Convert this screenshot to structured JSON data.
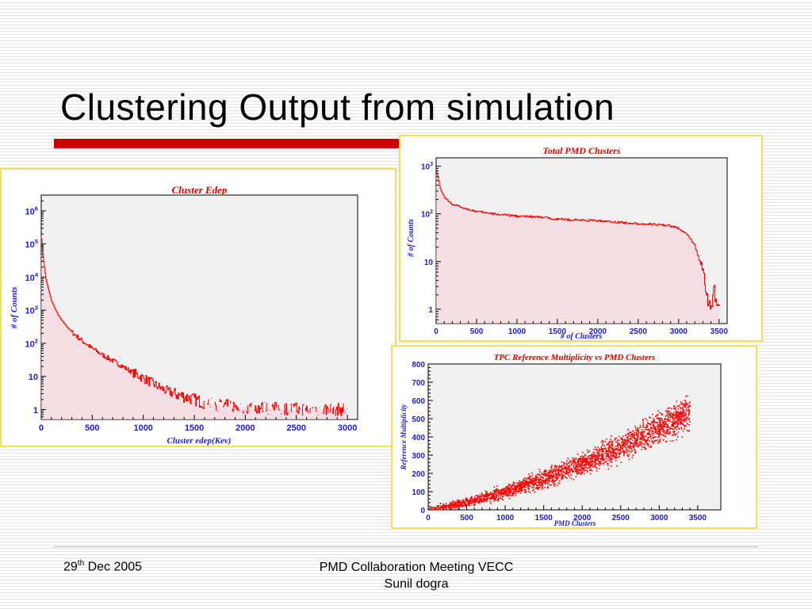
{
  "slide": {
    "title": "Clustering Output from simulation",
    "footer": {
      "date_day": "29",
      "date_sup": "th",
      "date_rest": " Dec 2005",
      "line1": "PMD Collaboration Meeting VECC",
      "line2": "Sunil dogra"
    },
    "colors": {
      "accent_bar": "#cc0000",
      "panel_border": "#f0e060",
      "plot_line": "#ff0000",
      "axis_text": "#1d1dcc",
      "title_text": "#dd0000"
    }
  },
  "chart_data": [
    {
      "id": "cluster-edep",
      "type": "line",
      "title": "Cluster Edep",
      "xlabel": "Cluster edep(Kev)",
      "ylabel": "# of Counts",
      "xlim": [
        0,
        3100
      ],
      "ylim": [
        0.5,
        3000000
      ],
      "yscale": "log",
      "xticks": [
        0,
        500,
        1000,
        1500,
        2000,
        2500,
        3000
      ],
      "yticks": [
        {
          "v": 1,
          "base": "1",
          "exp": ""
        },
        {
          "v": 10,
          "base": "10",
          "exp": ""
        },
        {
          "v": 100,
          "base": "10",
          "exp": "2"
        },
        {
          "v": 1000,
          "base": "10",
          "exp": "3"
        },
        {
          "v": 10000,
          "base": "10",
          "exp": "4"
        },
        {
          "v": 100000,
          "base": "10",
          "exp": "5"
        },
        {
          "v": 1000000,
          "base": "10",
          "exp": "6"
        }
      ],
      "series": [
        {
          "x": [
            0,
            20,
            50,
            100,
            150,
            200,
            300,
            400,
            500,
            600,
            700,
            800,
            900,
            1000,
            1100,
            1200,
            1300,
            1400,
            1500,
            1600,
            1800,
            2000,
            2200,
            2400,
            2600,
            2800,
            3000
          ],
          "y": [
            200000,
            40000,
            8000,
            2000,
            900,
            500,
            220,
            120,
            70,
            45,
            30,
            20,
            13,
            9,
            6,
            4,
            3,
            2.5,
            2,
            1.6,
            1.3,
            1.2,
            1.1,
            1.05,
            1.02,
            1.0,
            1.0
          ]
        }
      ]
    },
    {
      "id": "total-pmd-clusters",
      "type": "line",
      "title": "Total PMD Clusters",
      "xlabel": "# of Clusters",
      "ylabel": "# of Counts",
      "xlim": [
        0,
        3600
      ],
      "ylim": [
        0.5,
        1500
      ],
      "yscale": "log",
      "xticks": [
        0,
        500,
        1000,
        1500,
        2000,
        2500,
        3000,
        3500
      ],
      "yticks": [
        {
          "v": 1,
          "base": "1",
          "exp": ""
        },
        {
          "v": 10,
          "base": "10",
          "exp": ""
        },
        {
          "v": 100,
          "base": "10",
          "exp": "2"
        },
        {
          "v": 1000,
          "base": "10",
          "exp": "3"
        }
      ],
      "series": [
        {
          "x": [
            0,
            25,
            50,
            100,
            150,
            200,
            300,
            400,
            500,
            700,
            1000,
            1300,
            1500,
            1700,
            2000,
            2200,
            2500,
            2700,
            2900,
            3000,
            3100,
            3200,
            3250,
            3300,
            3330,
            3360,
            3400,
            3440,
            3470,
            3500
          ],
          "y": [
            900,
            600,
            350,
            230,
            185,
            160,
            140,
            125,
            112,
            100,
            90,
            85,
            78,
            75,
            72,
            68,
            62,
            60,
            56,
            50,
            38,
            22,
            12,
            6,
            3,
            1.5,
            1,
            3,
            1.2,
            1
          ]
        }
      ]
    },
    {
      "id": "tpc-ref-mult",
      "type": "scatter",
      "title": "TPC Reference Multiplicity vs PMD Clusters",
      "xlabel": "PMD Clusters",
      "ylabel": "Reference Multiplicity",
      "xlim": [
        0,
        3800
      ],
      "ylim": [
        0,
        800
      ],
      "xticks": [
        0,
        500,
        1000,
        1500,
        2000,
        2500,
        3000,
        3500
      ],
      "yticks": [
        0,
        100,
        200,
        300,
        400,
        500,
        600,
        700,
        800
      ],
      "trend": {
        "x": [
          0,
          500,
          1000,
          1500,
          2000,
          2500,
          3000,
          3400
        ],
        "y": [
          0,
          40,
          100,
          170,
          250,
          340,
          450,
          530
        ]
      }
    }
  ]
}
